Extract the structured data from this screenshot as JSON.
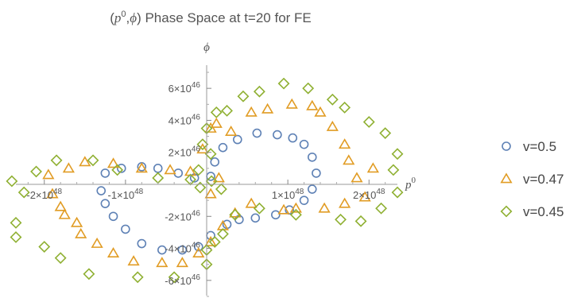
{
  "chart_data": {
    "type": "scatter",
    "title": {
      "pre": "(",
      "p": "p",
      "sup": "0",
      "mid": ",",
      "phi": "ϕ",
      "post": ") Phase Space at t=20 for FE"
    },
    "xlabel": {
      "base": "p",
      "sup": "0"
    },
    "ylabel": "ϕ",
    "xlim": [
      -2.35e+48,
      2.35e+48
    ],
    "ylim": [
      -7.2e+46,
      7.2e+46
    ],
    "x_ticks": [
      {
        "value": -2e+48,
        "mant": "-2",
        "exp": "48"
      },
      {
        "value": -1e+48,
        "mant": "-1",
        "exp": "48"
      },
      {
        "value": 1e+48,
        "mant": "1",
        "exp": "48"
      },
      {
        "value": 2e+48,
        "mant": "2",
        "exp": "48"
      }
    ],
    "y_ticks": [
      {
        "value": 6e+46,
        "mant": "6",
        "exp": "46"
      },
      {
        "value": 4e+46,
        "mant": "4",
        "exp": "46"
      },
      {
        "value": 2e+46,
        "mant": "2",
        "exp": "46"
      },
      {
        "value": -2e+46,
        "mant": "-2",
        "exp": "46"
      },
      {
        "value": -4e+46,
        "mant": "-4",
        "exp": "46"
      },
      {
        "value": -6e+46,
        "mant": "-6",
        "exp": "46"
      }
    ],
    "grid": false,
    "legend_position": "right",
    "series": [
      {
        "name": "v=0.5",
        "marker": "circle",
        "color": "#5E81B5",
        "points": [
          [
            5e+46,
            5e+45
          ],
          [
            1e+47,
            1.4e+46
          ],
          [
            2e+47,
            2.3e+46
          ],
          [
            3.8e+47,
            2.8e+46
          ],
          [
            6.2e+47,
            3.2e+46
          ],
          [
            8.7e+47,
            3.1e+46
          ],
          [
            1.06e+48,
            2.9e+46
          ],
          [
            1.2e+48,
            2.5e+46
          ],
          [
            1.3e+48,
            1.7e+46
          ],
          [
            1.35e+48,
            7e+45
          ],
          [
            1.3e+48,
            -3e+45
          ],
          [
            1.2e+48,
            -1e+46
          ],
          [
            1.02e+48,
            -1.6e+46
          ],
          [
            8.5e+47,
            -1.9e+46
          ],
          [
            6e+47,
            -2.1e+46
          ],
          [
            4e+47,
            -2.2e+46
          ],
          [
            2.5e+47,
            -2.5e+46
          ],
          [
            5e+46,
            -3.2e+46
          ],
          [
            -1e+47,
            -3.9e+46
          ],
          [
            -3e+47,
            -4.1e+46
          ],
          [
            -5.5e+47,
            -4.1e+46
          ],
          [
            -8e+47,
            -3.7e+46
          ],
          [
            -1e+48,
            -2.8e+46
          ],
          [
            -1.15e+48,
            -2e+46
          ],
          [
            -1.25e+48,
            -1.2e+46
          ],
          [
            -1.3e+48,
            -4e+45
          ],
          [
            -1.25e+48,
            7e+45
          ],
          [
            -1.05e+48,
            1e+46
          ],
          [
            -8e+47,
            1.1e+46
          ],
          [
            -6e+47,
            1e+46
          ],
          [
            -3.5e+47,
            7e+45
          ],
          [
            -1.5e+47,
            4e+45
          ]
        ]
      },
      {
        "name": "v=0.47",
        "marker": "triangle",
        "color": "#E19C24",
        "points": [
          [
            5e+46,
            -6e+45
          ],
          [
            1.5e+47,
            4e+45
          ],
          [
            3e+47,
            3.3e+46
          ],
          [
            5.5e+47,
            4.5e+46
          ],
          [
            7.5e+47,
            4.7e+46
          ],
          [
            1.05e+48,
            5e+46
          ],
          [
            1.3e+48,
            4.9e+46
          ],
          [
            1.4e+48,
            4.5e+46
          ],
          [
            1.55e+48,
            3.6e+46
          ],
          [
            1.7e+48,
            2.5e+46
          ],
          [
            1.75e+48,
            1.5e+46
          ],
          [
            1.85e+48,
            4e+45
          ],
          [
            2.05e+48,
            1e+46
          ],
          [
            1.95e+48,
            -8e+45
          ],
          [
            1.7e+48,
            -1.2e+46
          ],
          [
            1.45e+48,
            -1.5e+46
          ],
          [
            1.1e+48,
            -1.5e+46
          ],
          [
            9.5e+47,
            -1.6e+46
          ],
          [
            5.5e+47,
            -1.2e+46
          ],
          [
            3.5e+47,
            -1.8e+46
          ],
          [
            2e+47,
            -2.6e+46
          ],
          [
            5e+46,
            -3.6e+46
          ],
          [
            -1e+47,
            -4.3e+46
          ],
          [
            -3e+47,
            -4.9e+46
          ],
          [
            -5.5e+47,
            -4.9e+46
          ],
          [
            -9e+47,
            -4.8e+46
          ],
          [
            -1.15e+48,
            -4.3e+46
          ],
          [
            -1.35e+48,
            -3.7e+46
          ],
          [
            -1.55e+48,
            -3.1e+46
          ],
          [
            -1.6e+48,
            -2.4e+46
          ],
          [
            -1.75e+48,
            -1.9e+46
          ],
          [
            -1.8e+48,
            -1.4e+46
          ],
          [
            -1.9e+48,
            -6e+45
          ],
          [
            -1.95e+48,
            6e+45
          ],
          [
            -1.7e+48,
            1e+46
          ],
          [
            -1.5e+48,
            1.4e+46
          ],
          [
            -1.15e+48,
            1.3e+46
          ],
          [
            -8e+47,
            1e+46
          ],
          [
            -4.5e+47,
            9e+45
          ],
          [
            -2e+47,
            8e+45
          ],
          [
            -5e+46,
            2.2e+46
          ],
          [
            5e+46,
            3.5e+46
          ],
          [
            1.2e+47,
            3.8e+46
          ]
        ]
      },
      {
        "name": "v=0.45",
        "marker": "diamond",
        "color": "#8FB032",
        "points": [
          [
            5e+46,
            1.9e+46
          ],
          [
            2.5e+47,
            4.6e+46
          ],
          [
            4.5e+47,
            5.5e+46
          ],
          [
            6.5e+47,
            5.8e+46
          ],
          [
            9.5e+47,
            6.3e+46
          ],
          [
            1.25e+48,
            6e+46
          ],
          [
            1.55e+48,
            5.3e+46
          ],
          [
            1.7e+48,
            4.8e+46
          ],
          [
            2e+48,
            3.9e+46
          ],
          [
            2.2e+48,
            3.2e+46
          ],
          [
            2.35e+48,
            1.9e+46
          ],
          [
            2.3e+48,
            9e+45
          ],
          [
            2.35e+48,
            -5e+45
          ],
          [
            2.15e+48,
            -1.5e+46
          ],
          [
            1.9e+48,
            -2.3e+46
          ],
          [
            1.65e+48,
            -2.2e+46
          ],
          [
            1.1e+48,
            -1.9e+46
          ],
          [
            6.5e+47,
            -1.5e+46
          ],
          [
            3.5e+47,
            -1.9e+46
          ],
          [
            2e+47,
            -3.1e+46
          ],
          [
            1e+47,
            -3.6e+46
          ],
          [
            0.0,
            -4.1e+46
          ],
          [
            0.0,
            -5e+46
          ],
          [
            -4e+47,
            -5.8e+46
          ],
          [
            -8.5e+47,
            -5.8e+46
          ],
          [
            -1.45e+48,
            -5.6e+46
          ],
          [
            -1.8e+48,
            -4.6e+46
          ],
          [
            -2e+48,
            -3.9e+46
          ],
          [
            -2.35e+48,
            -3.3e+46
          ],
          [
            -2.35e+48,
            -2.4e+46
          ],
          [
            -2.25e+48,
            -5e+45
          ],
          [
            -2.4e+48,
            2e+45
          ],
          [
            -2.1e+48,
            8e+45
          ],
          [
            -1.85e+48,
            1.5e+46
          ],
          [
            -1.4e+48,
            1.5e+46
          ],
          [
            -1.1e+48,
            9e+45
          ],
          [
            -6e+47,
            4e+45
          ],
          [
            -2e+47,
            3e+45
          ],
          [
            -1e+47,
            9e+45
          ],
          [
            -5e+46,
            2.5e+46
          ],
          [
            0.0,
            3.5e+46
          ],
          [
            1.2e+47,
            4.5e+46
          ],
          [
            6e+46,
            2e+45
          ],
          [
            1.8e+47,
            -3e+45
          ],
          [
            -8e+46,
            -2e+45
          ]
        ]
      }
    ]
  }
}
